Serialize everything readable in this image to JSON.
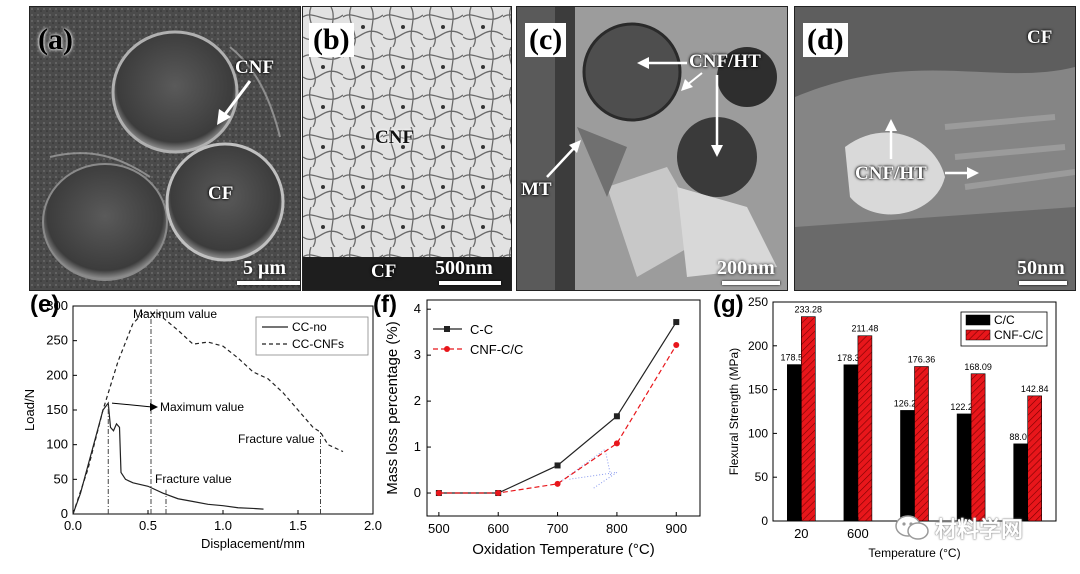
{
  "micrographs": {
    "a": {
      "label": "(a)",
      "annotations": [
        "CNF",
        "CF"
      ],
      "scale": "5 μm"
    },
    "b": {
      "label": "(b)",
      "annotations": [
        "CNF",
        "CF"
      ],
      "scale": "500nm"
    },
    "c": {
      "label": "(c)",
      "annotations": [
        "CNF/HT",
        "MT"
      ],
      "scale": "200nm"
    },
    "d": {
      "label": "(d)",
      "annotations": [
        "CF",
        "CNF/HT"
      ],
      "scale": "50nm"
    }
  },
  "watermark": "材料学网",
  "chart_data": [
    {
      "panel": "(e)",
      "type": "line",
      "xlabel": "Displacement/mm",
      "ylabel": "Load/N",
      "xlim": [
        0.0,
        2.0
      ],
      "ylim": [
        0,
        300
      ],
      "xticks": [
        "0.0",
        "0.5",
        "1.0",
        "1.5",
        "2.0"
      ],
      "yticks": [
        "0",
        "50",
        "100",
        "150",
        "200",
        "250",
        "300"
      ],
      "legend_position": "top-right",
      "series": [
        {
          "name": "CC-no",
          "style": "solid",
          "x": [
            0.0,
            0.05,
            0.1,
            0.15,
            0.2,
            0.235,
            0.25,
            0.27,
            0.29,
            0.31,
            0.32,
            0.35,
            0.4,
            0.5,
            0.6,
            0.7,
            0.8,
            0.9,
            1.0,
            1.1,
            1.2,
            1.27
          ],
          "y": [
            0,
            30,
            70,
            110,
            150,
            160,
            125,
            120,
            130,
            125,
            60,
            50,
            45,
            40,
            30,
            22,
            18,
            14,
            12,
            9,
            8,
            7
          ]
        },
        {
          "name": "CC-CNFs",
          "style": "dashed",
          "x": [
            0.0,
            0.1,
            0.2,
            0.3,
            0.4,
            0.48,
            0.52,
            0.56,
            0.6,
            0.7,
            0.8,
            0.9,
            1.0,
            1.1,
            1.2,
            1.3,
            1.4,
            1.5,
            1.6,
            1.65,
            1.7,
            1.8
          ],
          "y": [
            0,
            65,
            150,
            220,
            275,
            292,
            288,
            291,
            283,
            265,
            245,
            248,
            242,
            225,
            205,
            195,
            175,
            150,
            125,
            118,
            100,
            90
          ]
        }
      ],
      "markers": [
        {
          "x": 0.235,
          "label": "Maximum value"
        },
        {
          "x": 0.52,
          "label": "Maximum value"
        },
        {
          "x": 0.62,
          "label": "Fracture value"
        },
        {
          "x": 1.65,
          "label": "Fracture value"
        }
      ]
    },
    {
      "panel": "(f)",
      "type": "line",
      "xlabel": "Oxidation Temperature (°C)",
      "ylabel": "Mass loss percentage (%)",
      "xlim": [
        480,
        940
      ],
      "ylim": [
        -0.5,
        4.2
      ],
      "xticks": [
        "500",
        "600",
        "700",
        "800",
        "900"
      ],
      "yticks": [
        "0",
        "1",
        "2",
        "3",
        "4"
      ],
      "legend_position": "top-left",
      "series": [
        {
          "name": "C-C",
          "style": "solid",
          "x": [
            500,
            600,
            700,
            800,
            900
          ],
          "y": [
            0.0,
            0.0,
            0.6,
            1.67,
            3.72
          ]
        },
        {
          "name": "CNF-C/C",
          "style": "dashed",
          "x": [
            500,
            600,
            700,
            800,
            900
          ],
          "y": [
            0.0,
            0.0,
            0.2,
            1.08,
            3.22
          ]
        }
      ]
    },
    {
      "panel": "(g)",
      "type": "bar",
      "xlabel": "Temperature (°C)",
      "ylabel": "Flexural Strength (MPa)",
      "ylim": [
        0,
        250
      ],
      "yticks": [
        "0",
        "50",
        "100",
        "150",
        "200",
        "250"
      ],
      "categories": [
        "20",
        "600",
        "",
        "",
        ""
      ],
      "legend_position": "top-right",
      "series": [
        {
          "name": "C/C",
          "color": "#000000",
          "values": [
            178.55,
            178.34,
            126.24,
            122.24,
            88.07
          ],
          "labels": [
            "178.55",
            "178.34",
            "126.24",
            "122.24",
            "88.07"
          ]
        },
        {
          "name": "CNF-C/C",
          "color": "#e8161b",
          "values": [
            233.28,
            211.48,
            176.36,
            168.09,
            142.84
          ],
          "labels": [
            "233.28",
            "211.48",
            "176.36",
            "168.09",
            "142.84"
          ]
        }
      ]
    }
  ]
}
